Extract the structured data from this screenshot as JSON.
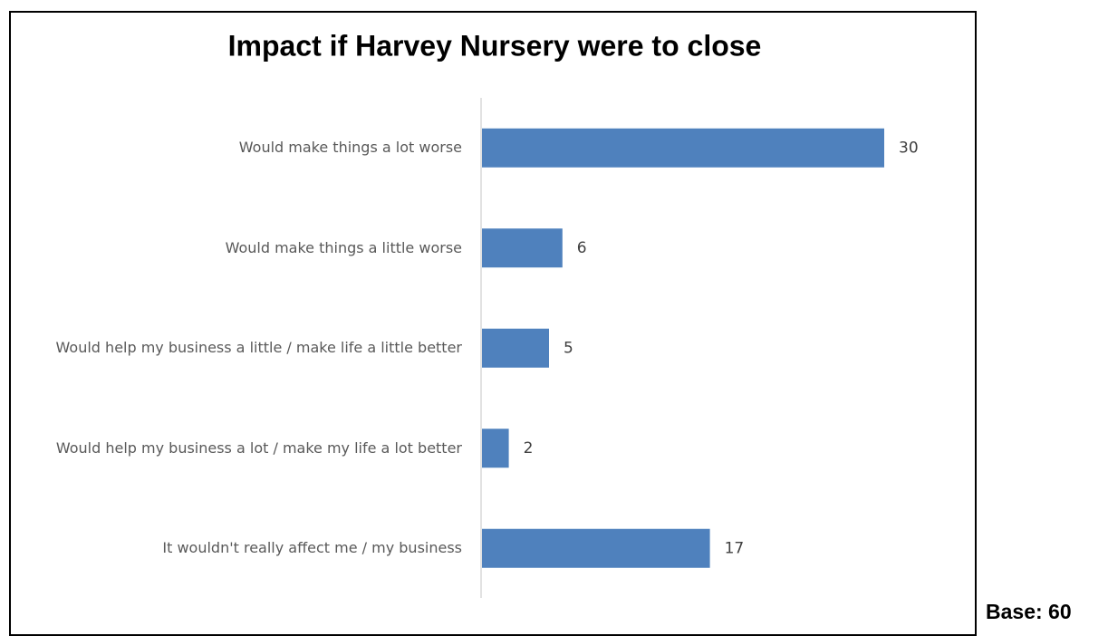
{
  "chart_data": {
    "type": "barh",
    "title": "Impact if Harvey Nursery were to close",
    "categories": [
      "Would make things a lot worse",
      "Would make things a little worse",
      "Would help my business a little / make life a little better",
      "Would help my business a lot / make my life a lot better",
      "It wouldn't really affect me / my business"
    ],
    "values": [
      30,
      6,
      5,
      2,
      17
    ],
    "color": "#4f81bd",
    "annotation": "Base: 60"
  }
}
